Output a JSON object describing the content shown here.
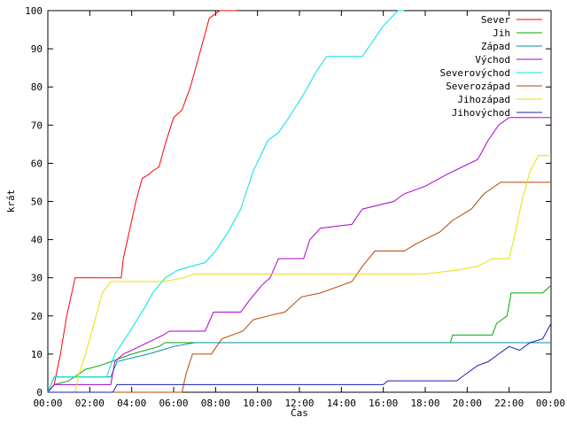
{
  "chart_data": {
    "type": "line",
    "title": "",
    "xlabel": "Čas",
    "ylabel": "krát",
    "xlim": [
      0,
      24
    ],
    "ylim": [
      0,
      100
    ],
    "grid": false,
    "legend_position": "top-right",
    "x_tick_labels": [
      "00:00",
      "02:00",
      "04:00",
      "06:00",
      "08:00",
      "10:00",
      "12:00",
      "14:00",
      "16:00",
      "18:00",
      "20:00",
      "22:00",
      "00:00"
    ],
    "y_tick_labels": [
      "0",
      "10",
      "20",
      "30",
      "40",
      "50",
      "60",
      "70",
      "80",
      "90",
      "100"
    ],
    "series": [
      {
        "name": "Sever",
        "color": "#ff0000",
        "points": [
          [
            0,
            0
          ],
          [
            0.3,
            2
          ],
          [
            0.6,
            10
          ],
          [
            0.9,
            20
          ],
          [
            1.3,
            30
          ],
          [
            3.5,
            30
          ],
          [
            3.6,
            35
          ],
          [
            3.8,
            40
          ],
          [
            4.0,
            45
          ],
          [
            4.2,
            50
          ],
          [
            4.5,
            56
          ],
          [
            4.8,
            57
          ],
          [
            5.0,
            58
          ],
          [
            5.3,
            59
          ],
          [
            5.6,
            65
          ],
          [
            6.0,
            72
          ],
          [
            6.4,
            74
          ],
          [
            6.8,
            80
          ],
          [
            7.3,
            90
          ],
          [
            7.7,
            98
          ],
          [
            8.2,
            100
          ],
          [
            9.0,
            100
          ]
        ]
      },
      {
        "name": "Jih",
        "color": "#00aa00",
        "points": [
          [
            0,
            0
          ],
          [
            0.3,
            2
          ],
          [
            1.0,
            3
          ],
          [
            1.8,
            6
          ],
          [
            2.5,
            7
          ],
          [
            3.0,
            8
          ],
          [
            4.0,
            10
          ],
          [
            5.3,
            12
          ],
          [
            5.6,
            13
          ],
          [
            10,
            13
          ],
          [
            15,
            13
          ],
          [
            19.2,
            13
          ],
          [
            19.3,
            15
          ],
          [
            21.2,
            15
          ],
          [
            21.4,
            18
          ],
          [
            21.9,
            20
          ],
          [
            22.1,
            26
          ],
          [
            23.6,
            26
          ],
          [
            24,
            28
          ]
        ]
      },
      {
        "name": "Západ",
        "color": "#0090a0",
        "points": [
          [
            0,
            0
          ],
          [
            0.3,
            4
          ],
          [
            3.0,
            4
          ],
          [
            3.3,
            8
          ],
          [
            4.0,
            9
          ],
          [
            4.8,
            10
          ],
          [
            5.4,
            11
          ],
          [
            6.0,
            12
          ],
          [
            7.0,
            13
          ],
          [
            24,
            13
          ]
        ]
      },
      {
        "name": "Východ",
        "color": "#aa00cc",
        "points": [
          [
            0,
            0
          ],
          [
            0.3,
            2
          ],
          [
            3.0,
            2
          ],
          [
            3.2,
            8
          ],
          [
            3.6,
            10
          ],
          [
            4.0,
            11
          ],
          [
            5.5,
            15
          ],
          [
            5.8,
            16
          ],
          [
            7.5,
            16
          ],
          [
            7.9,
            21
          ],
          [
            9.2,
            21
          ],
          [
            9.6,
            24
          ],
          [
            10.2,
            28
          ],
          [
            10.6,
            30
          ],
          [
            11.0,
            35
          ],
          [
            12.2,
            35
          ],
          [
            12.5,
            40
          ],
          [
            13.0,
            43
          ],
          [
            14.5,
            44
          ],
          [
            15.0,
            48
          ],
          [
            16.5,
            50
          ],
          [
            17.0,
            52
          ],
          [
            18.0,
            54
          ],
          [
            19.0,
            57
          ],
          [
            20.5,
            61
          ],
          [
            21.0,
            66
          ],
          [
            21.5,
            70
          ],
          [
            22.0,
            72
          ],
          [
            24,
            72
          ]
        ]
      },
      {
        "name": "Severovýchod",
        "color": "#00e0e0",
        "points": [
          [
            0,
            0
          ],
          [
            0.3,
            4
          ],
          [
            2.8,
            4
          ],
          [
            3.2,
            10
          ],
          [
            3.8,
            15
          ],
          [
            4.6,
            22
          ],
          [
            5.0,
            26
          ],
          [
            5.6,
            30
          ],
          [
            6.2,
            32
          ],
          [
            7.5,
            34
          ],
          [
            8.0,
            37
          ],
          [
            8.6,
            42
          ],
          [
            9.2,
            48
          ],
          [
            9.8,
            58
          ],
          [
            10.5,
            66
          ],
          [
            11.0,
            68
          ],
          [
            11.5,
            72
          ],
          [
            12.3,
            79
          ],
          [
            12.8,
            84
          ],
          [
            13.3,
            88
          ],
          [
            15.0,
            88
          ],
          [
            15.5,
            92
          ],
          [
            16.0,
            96
          ],
          [
            16.7,
            100
          ],
          [
            17.0,
            100
          ]
        ]
      },
      {
        "name": "Severozápad",
        "color": "#b84400",
        "points": [
          [
            0,
            0
          ],
          [
            6.4,
            0
          ],
          [
            6.6,
            5
          ],
          [
            6.9,
            10
          ],
          [
            7.8,
            10
          ],
          [
            8.3,
            14
          ],
          [
            9.3,
            16
          ],
          [
            9.8,
            19
          ],
          [
            10.5,
            20
          ],
          [
            11.3,
            21
          ],
          [
            12.1,
            25
          ],
          [
            13.0,
            26
          ],
          [
            14.5,
            29
          ],
          [
            15.0,
            33
          ],
          [
            15.6,
            37
          ],
          [
            17.0,
            37
          ],
          [
            17.6,
            39
          ],
          [
            18.7,
            42
          ],
          [
            19.3,
            45
          ],
          [
            20.2,
            48
          ],
          [
            20.8,
            52
          ],
          [
            21.6,
            55
          ],
          [
            24,
            55
          ]
        ]
      },
      {
        "name": "Jihozápad",
        "color": "#e8e000",
        "points": [
          [
            0,
            0
          ],
          [
            1.3,
            0
          ],
          [
            1.5,
            5
          ],
          [
            1.8,
            10
          ],
          [
            2.2,
            18
          ],
          [
            2.6,
            26
          ],
          [
            3.0,
            29
          ],
          [
            5.5,
            29
          ],
          [
            6.5,
            30
          ],
          [
            7.0,
            31
          ],
          [
            12.0,
            31
          ],
          [
            18.0,
            31
          ],
          [
            19.5,
            32
          ],
          [
            20.5,
            33
          ],
          [
            21.2,
            35
          ],
          [
            22.0,
            35
          ],
          [
            22.3,
            42
          ],
          [
            22.6,
            50
          ],
          [
            23.0,
            58
          ],
          [
            23.4,
            62
          ],
          [
            24,
            62
          ]
        ]
      },
      {
        "name": "Jihovýchod",
        "color": "#1c1cb0",
        "points": [
          [
            0,
            0
          ],
          [
            3.1,
            0
          ],
          [
            3.3,
            2
          ],
          [
            16.0,
            2
          ],
          [
            16.2,
            3
          ],
          [
            19.5,
            3
          ],
          [
            20.0,
            5
          ],
          [
            20.5,
            7
          ],
          [
            21.0,
            8
          ],
          [
            21.5,
            10
          ],
          [
            22.0,
            12
          ],
          [
            22.5,
            11
          ],
          [
            23.0,
            13
          ],
          [
            23.6,
            14
          ],
          [
            24,
            18
          ]
        ]
      }
    ]
  }
}
